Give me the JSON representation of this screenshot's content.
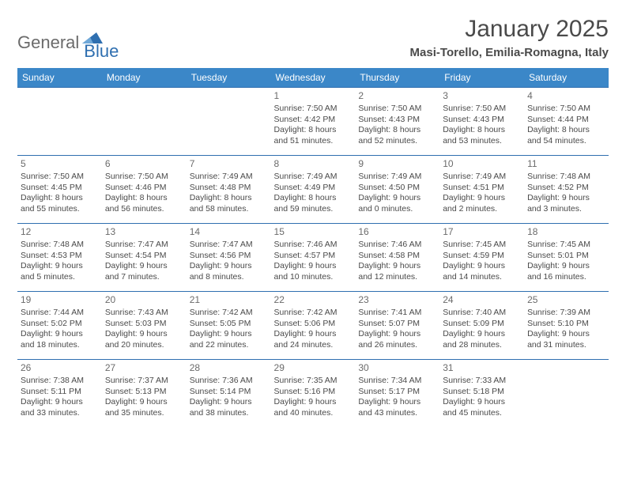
{
  "logo": {
    "word1": "General",
    "word2": "Blue"
  },
  "title": "January 2025",
  "location": "Masi-Torello, Emilia-Romagna, Italy",
  "colors": {
    "header_bg": "#3b87c8",
    "header_text": "#ffffff",
    "border": "#2f6fb0",
    "text": "#4a4a4a",
    "logo_gray": "#6b6b6b",
    "logo_blue": "#2f6fb0",
    "page_bg": "#ffffff"
  },
  "typography": {
    "title_fontsize": 30,
    "location_fontsize": 15,
    "th_fontsize": 12,
    "daynum_fontsize": 12,
    "body_fontsize": 10.5
  },
  "weekdays": [
    "Sunday",
    "Monday",
    "Tuesday",
    "Wednesday",
    "Thursday",
    "Friday",
    "Saturday"
  ],
  "weeks": [
    [
      null,
      null,
      null,
      {
        "n": "1",
        "sr": "7:50 AM",
        "ss": "4:42 PM",
        "dh": "8",
        "dm": "51"
      },
      {
        "n": "2",
        "sr": "7:50 AM",
        "ss": "4:43 PM",
        "dh": "8",
        "dm": "52"
      },
      {
        "n": "3",
        "sr": "7:50 AM",
        "ss": "4:43 PM",
        "dh": "8",
        "dm": "53"
      },
      {
        "n": "4",
        "sr": "7:50 AM",
        "ss": "4:44 PM",
        "dh": "8",
        "dm": "54"
      }
    ],
    [
      {
        "n": "5",
        "sr": "7:50 AM",
        "ss": "4:45 PM",
        "dh": "8",
        "dm": "55"
      },
      {
        "n": "6",
        "sr": "7:50 AM",
        "ss": "4:46 PM",
        "dh": "8",
        "dm": "56"
      },
      {
        "n": "7",
        "sr": "7:49 AM",
        "ss": "4:48 PM",
        "dh": "8",
        "dm": "58"
      },
      {
        "n": "8",
        "sr": "7:49 AM",
        "ss": "4:49 PM",
        "dh": "8",
        "dm": "59"
      },
      {
        "n": "9",
        "sr": "7:49 AM",
        "ss": "4:50 PM",
        "dh": "9",
        "dm": "0"
      },
      {
        "n": "10",
        "sr": "7:49 AM",
        "ss": "4:51 PM",
        "dh": "9",
        "dm": "2"
      },
      {
        "n": "11",
        "sr": "7:48 AM",
        "ss": "4:52 PM",
        "dh": "9",
        "dm": "3"
      }
    ],
    [
      {
        "n": "12",
        "sr": "7:48 AM",
        "ss": "4:53 PM",
        "dh": "9",
        "dm": "5"
      },
      {
        "n": "13",
        "sr": "7:47 AM",
        "ss": "4:54 PM",
        "dh": "9",
        "dm": "7"
      },
      {
        "n": "14",
        "sr": "7:47 AM",
        "ss": "4:56 PM",
        "dh": "9",
        "dm": "8"
      },
      {
        "n": "15",
        "sr": "7:46 AM",
        "ss": "4:57 PM",
        "dh": "9",
        "dm": "10"
      },
      {
        "n": "16",
        "sr": "7:46 AM",
        "ss": "4:58 PM",
        "dh": "9",
        "dm": "12"
      },
      {
        "n": "17",
        "sr": "7:45 AM",
        "ss": "4:59 PM",
        "dh": "9",
        "dm": "14"
      },
      {
        "n": "18",
        "sr": "7:45 AM",
        "ss": "5:01 PM",
        "dh": "9",
        "dm": "16"
      }
    ],
    [
      {
        "n": "19",
        "sr": "7:44 AM",
        "ss": "5:02 PM",
        "dh": "9",
        "dm": "18"
      },
      {
        "n": "20",
        "sr": "7:43 AM",
        "ss": "5:03 PM",
        "dh": "9",
        "dm": "20"
      },
      {
        "n": "21",
        "sr": "7:42 AM",
        "ss": "5:05 PM",
        "dh": "9",
        "dm": "22"
      },
      {
        "n": "22",
        "sr": "7:42 AM",
        "ss": "5:06 PM",
        "dh": "9",
        "dm": "24"
      },
      {
        "n": "23",
        "sr": "7:41 AM",
        "ss": "5:07 PM",
        "dh": "9",
        "dm": "26"
      },
      {
        "n": "24",
        "sr": "7:40 AM",
        "ss": "5:09 PM",
        "dh": "9",
        "dm": "28"
      },
      {
        "n": "25",
        "sr": "7:39 AM",
        "ss": "5:10 PM",
        "dh": "9",
        "dm": "31"
      }
    ],
    [
      {
        "n": "26",
        "sr": "7:38 AM",
        "ss": "5:11 PM",
        "dh": "9",
        "dm": "33"
      },
      {
        "n": "27",
        "sr": "7:37 AM",
        "ss": "5:13 PM",
        "dh": "9",
        "dm": "35"
      },
      {
        "n": "28",
        "sr": "7:36 AM",
        "ss": "5:14 PM",
        "dh": "9",
        "dm": "38"
      },
      {
        "n": "29",
        "sr": "7:35 AM",
        "ss": "5:16 PM",
        "dh": "9",
        "dm": "40"
      },
      {
        "n": "30",
        "sr": "7:34 AM",
        "ss": "5:17 PM",
        "dh": "9",
        "dm": "43"
      },
      {
        "n": "31",
        "sr": "7:33 AM",
        "ss": "5:18 PM",
        "dh": "9",
        "dm": "45"
      },
      null
    ]
  ]
}
